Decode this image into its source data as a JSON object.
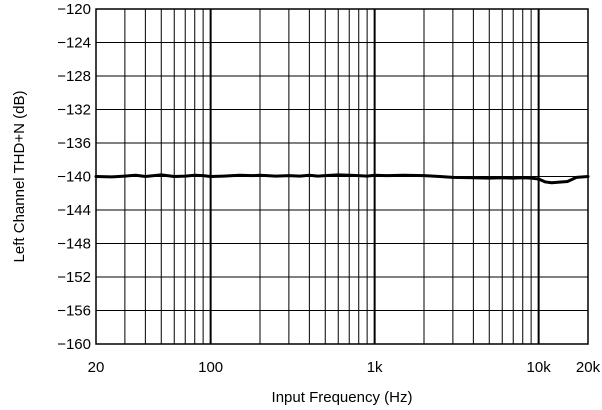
{
  "chart_data": {
    "type": "line",
    "xlabel": "Input Frequency (Hz)",
    "ylabel": "Left Channel THD+N (dB)",
    "x_scale": "log",
    "xlim": [
      20,
      20000
    ],
    "ylim": [
      -160,
      -120
    ],
    "grid": true,
    "y_ticks": [
      {
        "value": -120,
        "label": "−120"
      },
      {
        "value": -124,
        "label": "−124"
      },
      {
        "value": -128,
        "label": "−128"
      },
      {
        "value": -132,
        "label": "−132"
      },
      {
        "value": -136,
        "label": "−136"
      },
      {
        "value": -140,
        "label": "−140"
      },
      {
        "value": -144,
        "label": "−144"
      },
      {
        "value": -148,
        "label": "−148"
      },
      {
        "value": -152,
        "label": "−152"
      },
      {
        "value": -156,
        "label": "−156"
      },
      {
        "value": -160,
        "label": "−160"
      }
    ],
    "x_ticks": [
      {
        "value": 20,
        "label": "20"
      },
      {
        "value": 100,
        "label": "100"
      },
      {
        "value": 1000,
        "label": "1k"
      },
      {
        "value": 10000,
        "label": "10k"
      },
      {
        "value": 20000,
        "label": "20k"
      }
    ],
    "series": [
      {
        "color": "#000000",
        "points": [
          [
            20,
            -140.0
          ],
          [
            25,
            -140.05
          ],
          [
            30,
            -139.95
          ],
          [
            35,
            -139.85
          ],
          [
            40,
            -140.0
          ],
          [
            45,
            -139.9
          ],
          [
            50,
            -139.8
          ],
          [
            60,
            -140.0
          ],
          [
            70,
            -139.95
          ],
          [
            80,
            -139.85
          ],
          [
            90,
            -139.9
          ],
          [
            100,
            -140.0
          ],
          [
            120,
            -139.95
          ],
          [
            150,
            -139.85
          ],
          [
            180,
            -139.9
          ],
          [
            200,
            -139.85
          ],
          [
            250,
            -139.95
          ],
          [
            300,
            -139.9
          ],
          [
            350,
            -139.95
          ],
          [
            400,
            -139.85
          ],
          [
            450,
            -139.95
          ],
          [
            500,
            -139.9
          ],
          [
            600,
            -139.8
          ],
          [
            700,
            -139.85
          ],
          [
            800,
            -139.9
          ],
          [
            900,
            -139.95
          ],
          [
            1000,
            -139.85
          ],
          [
            1200,
            -139.9
          ],
          [
            1500,
            -139.85
          ],
          [
            2000,
            -139.9
          ],
          [
            2500,
            -140.0
          ],
          [
            3000,
            -140.1
          ],
          [
            4000,
            -140.15
          ],
          [
            5000,
            -140.2
          ],
          [
            6000,
            -140.15
          ],
          [
            7000,
            -140.2
          ],
          [
            8000,
            -140.15
          ],
          [
            9000,
            -140.2
          ],
          [
            10000,
            -140.3
          ],
          [
            11000,
            -140.65
          ],
          [
            12000,
            -140.75
          ],
          [
            15000,
            -140.6
          ],
          [
            17000,
            -140.1
          ],
          [
            20000,
            -140.0
          ]
        ]
      }
    ]
  }
}
